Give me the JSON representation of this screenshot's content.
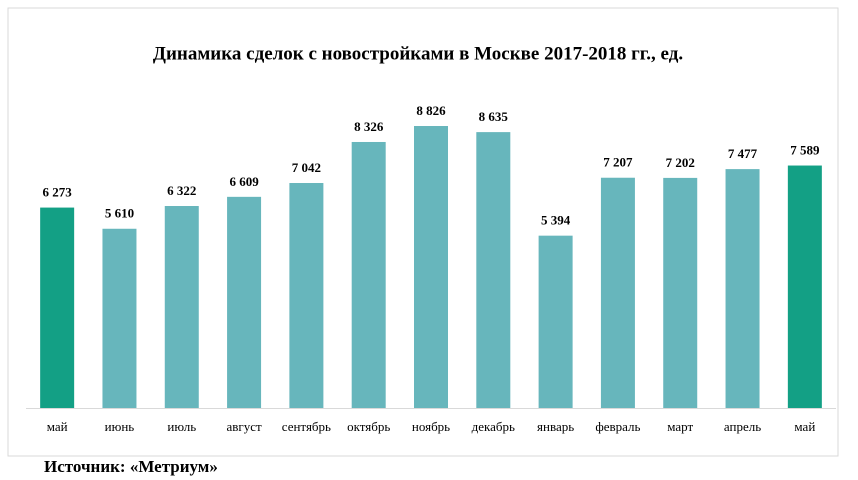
{
  "chart_data": {
    "type": "bar",
    "title": "Динамика сделок с новостройками в Москве 2017-2018 гг., ед.",
    "categories": [
      "май",
      "июнь",
      "июль",
      "август",
      "сентябрь",
      "октябрь",
      "ноябрь",
      "декабрь",
      "январь",
      "февраль",
      "март",
      "апрель",
      "май"
    ],
    "values": [
      6273,
      5610,
      6322,
      6609,
      7042,
      8326,
      8826,
      8635,
      5394,
      7207,
      7202,
      7477,
      7589
    ],
    "value_labels": [
      "6 273",
      "5 610",
      "6 322",
      "6 609",
      "7 042",
      "8 326",
      "8 826",
      "8 635",
      "5 394",
      "7 207",
      "7 202",
      "7 477",
      "7 589"
    ],
    "colors": [
      "#13a085",
      "#67b6bc",
      "#67b6bc",
      "#67b6bc",
      "#67b6bc",
      "#67b6bc",
      "#67b6bc",
      "#67b6bc",
      "#67b6bc",
      "#67b6bc",
      "#67b6bc",
      "#67b6bc",
      "#13a085"
    ],
    "ylim": [
      0,
      10000
    ]
  },
  "source": "Источник: «Метриум»"
}
